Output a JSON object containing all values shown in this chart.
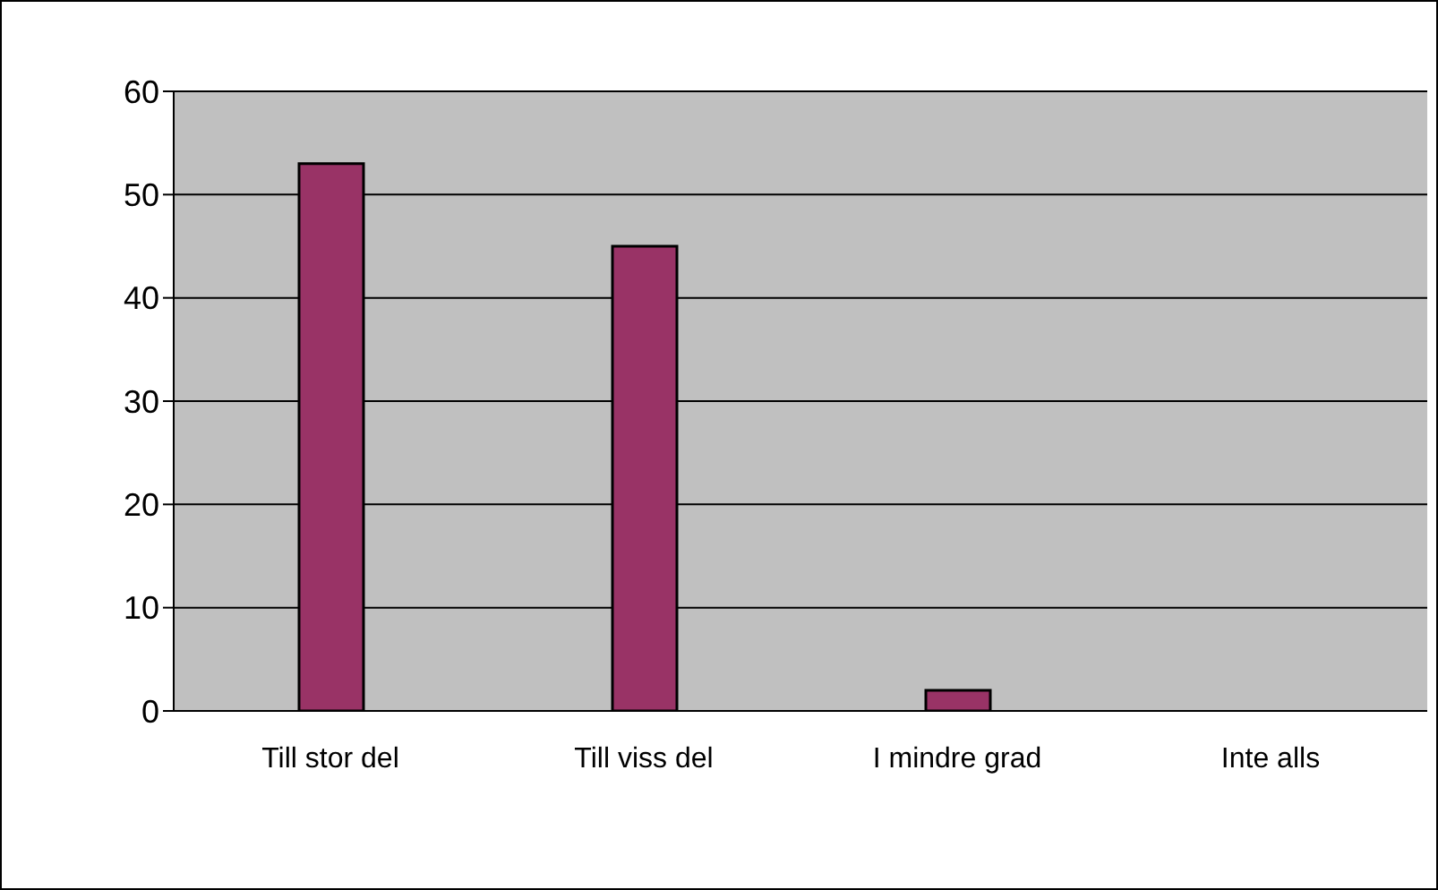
{
  "chart_data": {
    "type": "bar",
    "categories": [
      "Till stor del",
      "Till viss del",
      "I mindre grad",
      "Inte alls"
    ],
    "values": [
      53,
      45,
      2,
      0
    ],
    "color": "#993366",
    "ylim": [
      0,
      60
    ],
    "yticks": [
      0,
      10,
      20,
      30,
      40,
      50,
      60
    ],
    "grid": "y",
    "legend": false
  }
}
